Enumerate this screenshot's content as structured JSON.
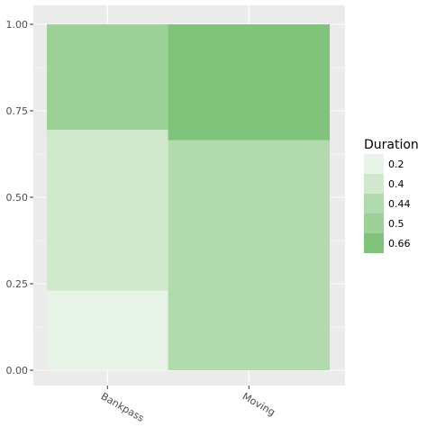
{
  "chart_data": {
    "type": "bar",
    "subtype": "stacked-proportion (spineplot-style)",
    "categories": [
      "Bankpass",
      "Moving"
    ],
    "category_widths": [
      0.345,
      0.46
    ],
    "ylim": [
      0,
      1
    ],
    "y_ticks": [
      "0.00",
      "0.25",
      "0.50",
      "0.75",
      "1.00"
    ],
    "y_tick_values": [
      0,
      0.25,
      0.5,
      0.75,
      1.0
    ],
    "grid": true,
    "legend": {
      "title": "Duration",
      "placement": "right",
      "entries": [
        {
          "label": "0.2",
          "color": "#e8f4e7"
        },
        {
          "label": "0.4",
          "color": "#d0e9cd"
        },
        {
          "label": "0.44",
          "color": "#b1dbad"
        },
        {
          "label": "0.5",
          "color": "#9cd198"
        },
        {
          "label": "0.66",
          "color": "#80c47b"
        }
      ]
    },
    "segments": [
      {
        "category": "Bankpass",
        "duration": "0.2",
        "y0": 0.0,
        "y1": 0.23
      },
      {
        "category": "Bankpass",
        "duration": "0.4",
        "y0": 0.23,
        "y1": 0.695
      },
      {
        "category": "Bankpass",
        "duration": "0.5",
        "y0": 0.695,
        "y1": 1.0
      },
      {
        "category": "Moving",
        "duration": "0.44",
        "y0": 0.0,
        "y1": 0.665
      },
      {
        "category": "Moving",
        "duration": "0.66",
        "y0": 0.665,
        "y1": 1.0
      }
    ]
  },
  "colors": {
    "panel_bg": "#ebebeb",
    "grid_major": "#ffffff",
    "axis_text": "#4d4d4d",
    "tick_mark": "#333333"
  }
}
